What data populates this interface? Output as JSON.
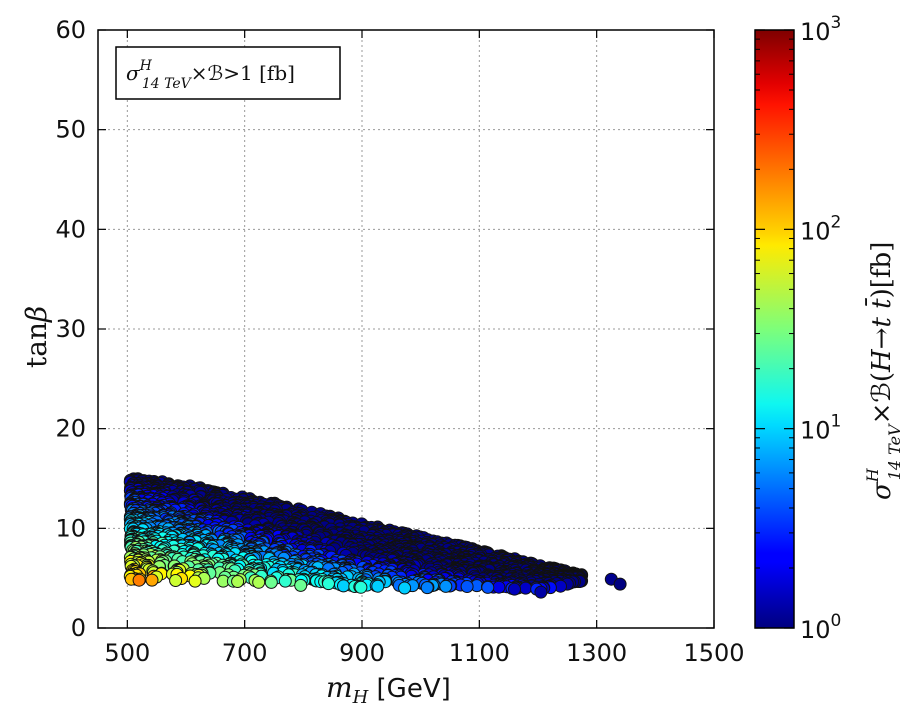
{
  "chart_data": {
    "type": "scatter",
    "title": "",
    "xlabel": "m_H [GeV]",
    "ylabel": "tanβ",
    "xlim": [
      450,
      1500
    ],
    "ylim": [
      0,
      60
    ],
    "x_ticks": [
      500,
      700,
      900,
      1100,
      1300,
      1500
    ],
    "y_ticks": [
      0,
      10,
      20,
      30,
      40,
      50,
      60
    ],
    "grid": true,
    "annotation": "σ^H_14 TeV × ℬ > 1 [fb]",
    "colorbar": {
      "label": "σ^H_14 TeV × ℬ(H → t t̄) [fb]",
      "scale": "log",
      "range": [
        1,
        1000
      ],
      "ticks": [
        {
          "value": 1,
          "base": "10",
          "exp": "0"
        },
        {
          "value": 10,
          "base": "10",
          "exp": "1"
        },
        {
          "value": 100,
          "base": "10",
          "exp": "2"
        },
        {
          "value": 1000,
          "base": "10",
          "exp": "3"
        }
      ],
      "colormap": "jet"
    },
    "region": {
      "description": "Allowed points: tanβ lower bound ~4, upper bound falls from ~15 at m_H=500 to ~5 at m_H=1340",
      "upper_boundary": [
        [
          505,
          15.2
        ],
        [
          600,
          14.4
        ],
        [
          700,
          13.2
        ],
        [
          800,
          11.9
        ],
        [
          900,
          10.5
        ],
        [
          1000,
          9.2
        ],
        [
          1100,
          7.8
        ],
        [
          1200,
          6.4
        ],
        [
          1280,
          5.3
        ]
      ],
      "lower_boundary": [
        [
          505,
          4.8
        ],
        [
          600,
          4.6
        ],
        [
          700,
          4.4
        ],
        [
          800,
          4.2
        ],
        [
          900,
          4.0
        ],
        [
          1000,
          4.0
        ],
        [
          1100,
          4.0
        ],
        [
          1200,
          3.8
        ],
        [
          1270,
          4.5
        ]
      ]
    },
    "highlighted_points": [
      {
        "x": 520,
        "y": 4.8,
        "c": 180
      },
      {
        "x": 545,
        "y": 5.2,
        "c": 140
      },
      {
        "x": 1325,
        "y": 4.9,
        "c": 1.1
      },
      {
        "x": 1340,
        "y": 4.4,
        "c": 1.0
      },
      {
        "x": 1205,
        "y": 3.6,
        "c": 1.3
      },
      {
        "x": 1160,
        "y": 3.9,
        "c": 1.5
      }
    ]
  }
}
